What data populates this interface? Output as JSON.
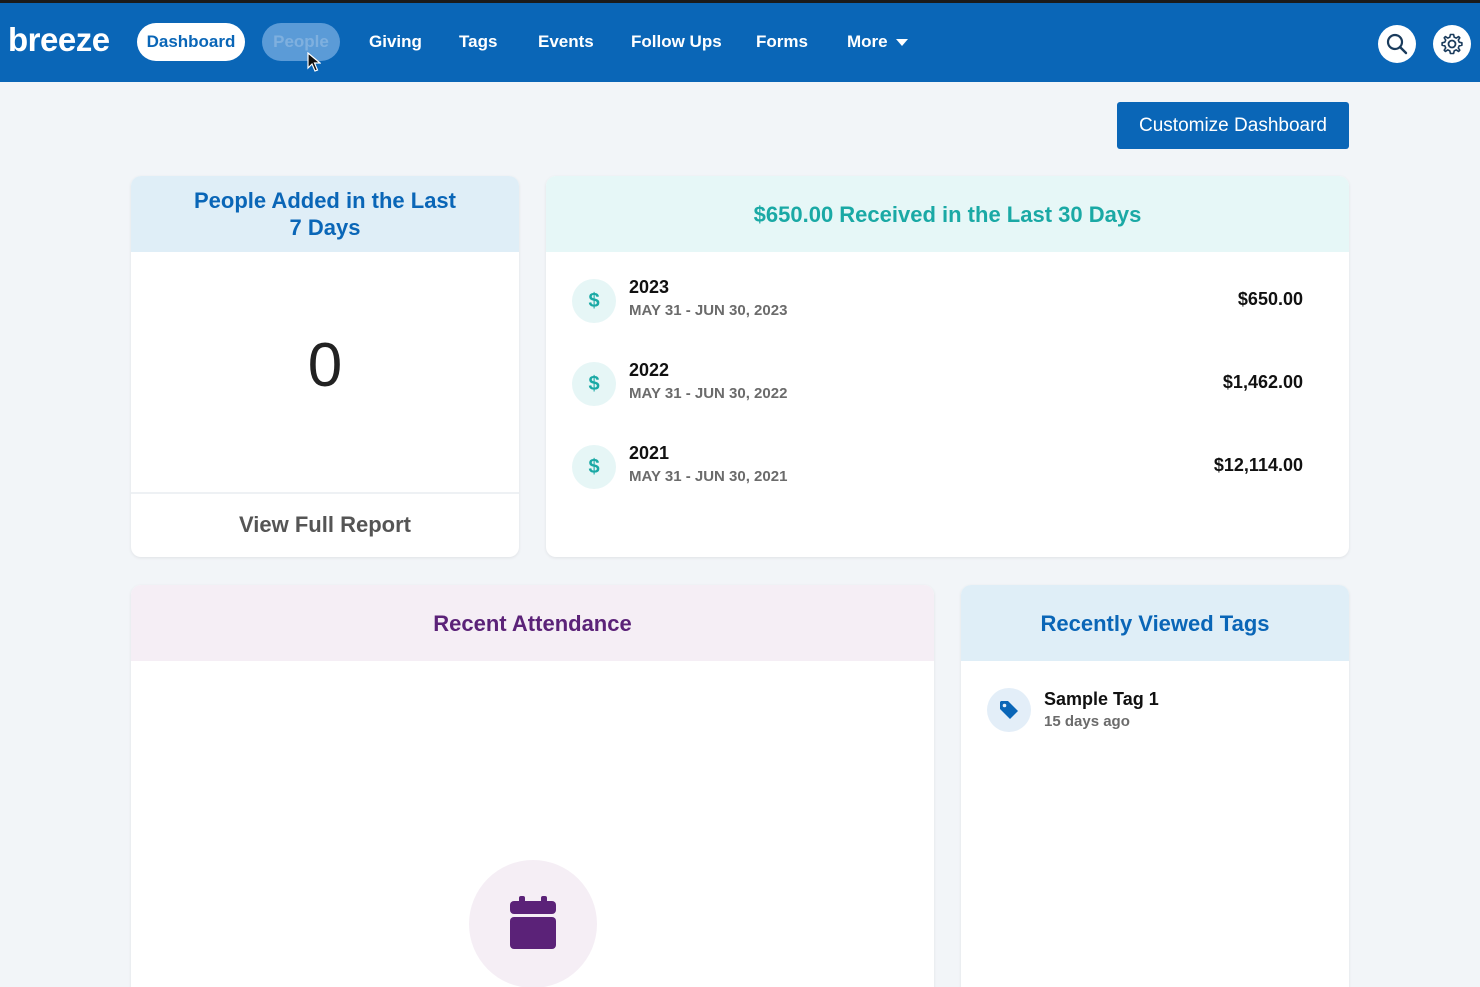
{
  "app": {
    "logo": "breeze"
  },
  "nav": {
    "items": [
      {
        "label": "Dashboard"
      },
      {
        "label": "People"
      },
      {
        "label": "Giving"
      },
      {
        "label": "Tags"
      },
      {
        "label": "Events"
      },
      {
        "label": "Follow Ups"
      },
      {
        "label": "Forms"
      },
      {
        "label": "More"
      }
    ],
    "active": "Dashboard",
    "hovered": "People",
    "icons": [
      "search-icon",
      "gear-icon"
    ]
  },
  "toolbar": {
    "customize_label": "Customize Dashboard"
  },
  "people_card": {
    "title": "People Added in the Last 7 Days",
    "count": "0",
    "report_label": "View Full Report"
  },
  "giving_card": {
    "title": "$650.00 Received in the Last 30 Days",
    "rows": [
      {
        "year": "2023",
        "range": "MAY 31 - JUN 30, 2023",
        "amount": "$650.00"
      },
      {
        "year": "2022",
        "range": "MAY 31 - JUN 30, 2022",
        "amount": "$1,462.00"
      },
      {
        "year": "2021",
        "range": "MAY 31 - JUN 30, 2021",
        "amount": "$12,114.00"
      }
    ],
    "icon": "dollar-icon"
  },
  "attendance_card": {
    "title": "Recent Attendance",
    "icon": "calendar-icon"
  },
  "tags_card": {
    "title": "Recently Viewed Tags",
    "items": [
      {
        "name": "Sample Tag 1",
        "time": "15 days ago"
      }
    ],
    "icon": "tag-icon"
  },
  "colors": {
    "brand": "#0a66b7",
    "teal": "#1aa9a5",
    "purple": "#5b2278",
    "page_bg": "#f2f5f8"
  }
}
